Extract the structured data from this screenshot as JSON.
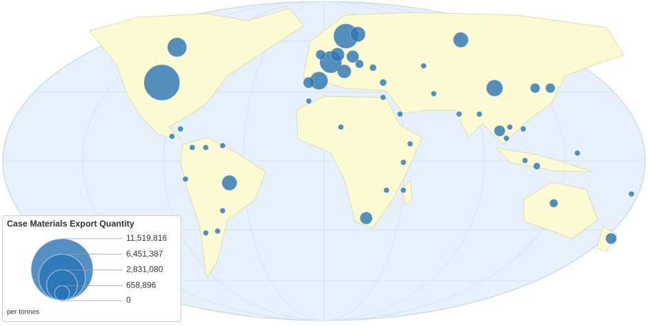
{
  "legend": {
    "title": "Case Materials Export Quantity",
    "unit": "per tonnes",
    "sizes": [
      {
        "value": 11519816,
        "label": "11,519,816"
      },
      {
        "value": 6451387,
        "label": "6,451,387"
      },
      {
        "value": 2831080,
        "label": "2,831,080"
      },
      {
        "value": 658896,
        "label": "658,896"
      },
      0
    ]
  },
  "points": [
    {
      "lon": -96,
      "lat": 40,
      "value": 3850000
    },
    {
      "lon": 13,
      "lat": 65,
      "value": 1840000
    },
    {
      "lon": 4,
      "lat": 51,
      "value": 1460000
    },
    {
      "lon": -87,
      "lat": 59,
      "value": 1110000
    },
    {
      "lon": -3,
      "lat": 41,
      "value": 960000
    },
    {
      "lon": 101,
      "lat": 37,
      "value": 820000
    },
    {
      "lon": -56,
      "lat": -14,
      "value": 690000
    },
    {
      "lon": 81,
      "lat": 63,
      "value": 690000
    },
    {
      "lon": 20,
      "lat": 66,
      "value": 690000
    },
    {
      "lon": 12,
      "lat": 46,
      "value": 570000
    },
    {
      "lon": 8,
      "lat": 55,
      "value": 570000
    },
    {
      "lon": 25,
      "lat": -33,
      "value": 460000
    },
    {
      "lon": 17,
      "lat": 54,
      "value": 460000
    },
    {
      "lon": -9,
      "lat": 40,
      "value": 364000
    },
    {
      "lon": 104,
      "lat": 14,
      "value": 364000
    },
    {
      "lon": 170,
      "lat": -44,
      "value": 364000
    },
    {
      "lon": -2,
      "lat": 55,
      "value": 279000
    },
    {
      "lon": 134,
      "lat": 37,
      "value": 279000
    },
    {
      "lon": 125,
      "lat": 37,
      "value": 279000
    },
    {
      "lon": 136,
      "lat": -25,
      "value": 205000
    },
    {
      "lon": 21,
      "lat": 50,
      "value": 205000
    },
    {
      "lon": 29,
      "lat": 48,
      "value": 142000
    },
    {
      "lon": 59,
      "lat": 49,
      "value": 91000
    },
    {
      "lon": 35,
      "lat": 40,
      "value": 142000
    },
    {
      "lon": 35,
      "lat": 32,
      "value": 91000
    },
    {
      "lon": 45,
      "lat": 23,
      "value": 91000
    },
    {
      "lon": 65,
      "lat": 34,
      "value": 91000
    },
    {
      "lon": 80,
      "lat": 23,
      "value": 91000
    },
    {
      "lon": 92,
      "lat": 23,
      "value": 91000
    },
    {
      "lon": 110,
      "lat": 16,
      "value": 91000
    },
    {
      "lon": 108,
      "lat": 10,
      "value": 91000
    },
    {
      "lon": 118,
      "lat": 15,
      "value": 91000
    },
    {
      "lon": 119,
      "lat": -2,
      "value": 91000
    },
    {
      "lon": 126,
      "lat": -5,
      "value": 142000
    },
    {
      "lon": 150,
      "lat": 2,
      "value": 91000
    },
    {
      "lon": 51,
      "lat": 7,
      "value": 91000
    },
    {
      "lon": 47,
      "lat": -18,
      "value": 91000
    },
    {
      "lon": 37,
      "lat": -18,
      "value": 91000
    },
    {
      "lon": 10,
      "lat": 16,
      "value": 91000
    },
    {
      "lon": -9,
      "lat": 30,
      "value": 91000
    },
    {
      "lon": -82,
      "lat": -12,
      "value": 91000
    },
    {
      "lon": -70,
      "lat": 5,
      "value": 91000
    },
    {
      "lon": -78,
      "lat": 5,
      "value": 91000
    },
    {
      "lon": -60,
      "lat": 6,
      "value": 91000
    },
    {
      "lon": -85,
      "lat": 15,
      "value": 91000
    },
    {
      "lon": -90,
      "lat": 11,
      "value": 91000
    },
    {
      "lon": -70,
      "lat": -41,
      "value": 91000
    },
    {
      "lon": -60,
      "lat": -29,
      "value": 91000
    },
    {
      "lon": -63,
      "lat": -40,
      "value": 91000
    },
    {
      "lon": 47,
      "lat": -3,
      "value": 91000
    },
    {
      "lon": 182,
      "lat": -20,
      "value": 91000
    }
  ]
}
